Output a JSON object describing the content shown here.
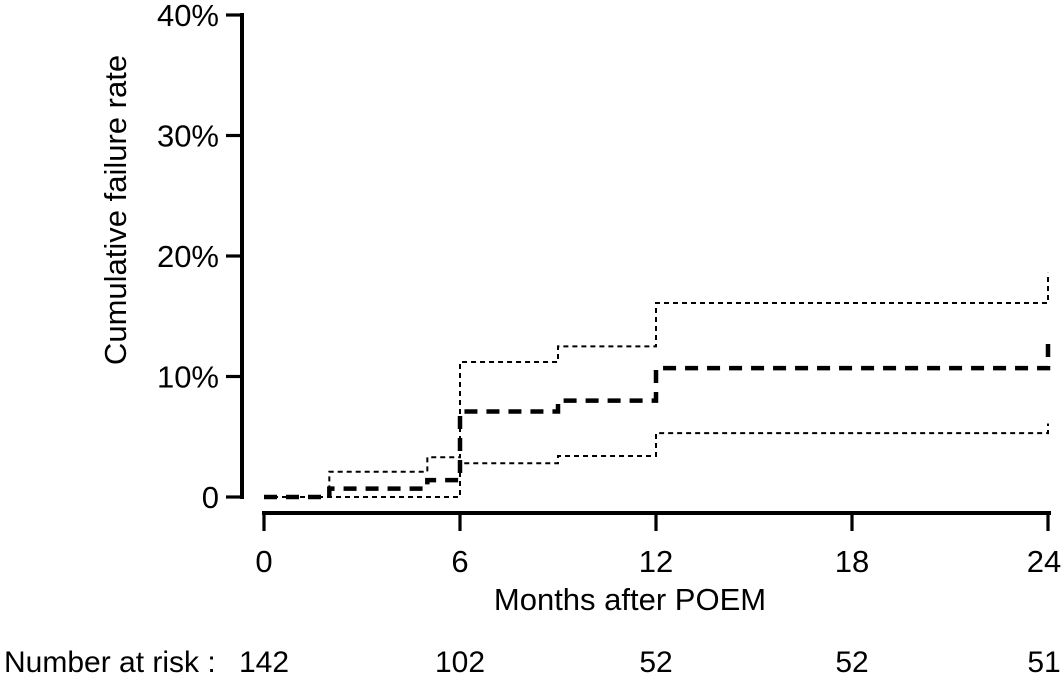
{
  "figure": {
    "background": "#ffffff",
    "line_color": "#000000"
  },
  "chart_data": {
    "type": "line",
    "subtype": "step",
    "title": "",
    "xlabel": "Months after POEM",
    "ylabel": "Cumulative failure rate",
    "xlim": [
      0,
      24
    ],
    "ylim": [
      0,
      40
    ],
    "grid": false,
    "legend": "none",
    "xticks": [
      {
        "value": 0,
        "label": "0"
      },
      {
        "value": 6,
        "label": "6"
      },
      {
        "value": 12,
        "label": "12"
      },
      {
        "value": 18,
        "label": "18"
      },
      {
        "value": 24,
        "label": "24"
      }
    ],
    "yticks": [
      {
        "value": 0,
        "label": "0"
      },
      {
        "value": 10,
        "label": "10%"
      },
      {
        "value": 20,
        "label": "20%"
      },
      {
        "value": 30,
        "label": "30%"
      },
      {
        "value": 40,
        "label": "40%"
      }
    ],
    "series": [
      {
        "name": "upper-95ci-band",
        "style": "thin-dotted",
        "stroke_width": 2,
        "dash": "5,4",
        "points": [
          [
            0,
            0
          ],
          [
            2,
            2.1
          ],
          [
            5,
            3.3
          ],
          [
            6,
            11.2
          ],
          [
            9,
            12.5
          ],
          [
            12,
            16.1
          ],
          [
            24,
            18.6
          ]
        ]
      },
      {
        "name": "lower-95ci-band",
        "style": "thin-dotted",
        "stroke_width": 2,
        "dash": "5,4",
        "points": [
          [
            0,
            0
          ],
          [
            6,
            2.8
          ],
          [
            9,
            3.4
          ],
          [
            12,
            5.3
          ],
          [
            24,
            6.1
          ]
        ]
      },
      {
        "name": "cumulative-failure-estimate",
        "style": "bold-dashed",
        "stroke_width": 4.5,
        "dash": "13,9",
        "points": [
          [
            0,
            0
          ],
          [
            2,
            0.7
          ],
          [
            5,
            1.4
          ],
          [
            6,
            7.1
          ],
          [
            9,
            8.0
          ],
          [
            12,
            10.7
          ],
          [
            24,
            13.2
          ]
        ]
      }
    ],
    "number_at_risk": {
      "label": "Number at risk :",
      "values": [
        "142",
        "102",
        "52",
        "52",
        "51"
      ]
    }
  }
}
